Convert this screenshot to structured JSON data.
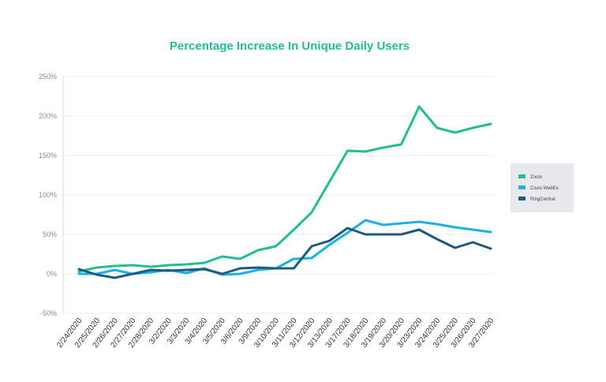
{
  "chart_data": {
    "type": "line",
    "title": "Percentage Increase In Unique Daily Users",
    "xlabel": "",
    "ylabel": "",
    "categories": [
      "2/24/2020",
      "2/25/2020",
      "2/26/2020",
      "2/27/2020",
      "2/28/2020",
      "3/2/2020",
      "3/3/2020",
      "3/4/2020",
      "3/5/2020",
      "3/6/2020",
      "3/9/2020",
      "3/10/2020",
      "3/11/2020",
      "3/12/2020",
      "3/13/2020",
      "3/17/2020",
      "3/18/2020",
      "3/19/2020",
      "3/20/2020",
      "3/23/2020",
      "3/24/2020",
      "3/25/2020",
      "3/26/2020",
      "3/27/2020"
    ],
    "y_ticks": [
      -50,
      0,
      50,
      100,
      150,
      200,
      250
    ],
    "y_tick_labels": [
      "-50%",
      "0%",
      "50%",
      "100%",
      "150%",
      "200%",
      "250%"
    ],
    "ylim": [
      -50,
      250
    ],
    "grid": true,
    "legend_position": "right",
    "title_color": "#1fbf8f",
    "series": [
      {
        "name": "Zoom",
        "color": "#1fbf8f",
        "values": [
          3,
          8,
          10,
          11,
          9,
          11,
          12,
          14,
          22,
          19,
          30,
          35,
          56,
          78,
          117,
          156,
          155,
          160,
          164,
          212,
          185,
          179,
          185,
          190
        ]
      },
      {
        "name": "Cisco WebEx",
        "color": "#1ab1ea",
        "values": [
          0,
          0,
          5,
          0,
          2,
          5,
          1,
          7,
          -1,
          0,
          5,
          7,
          19,
          20,
          37,
          52,
          68,
          62,
          64,
          66,
          63,
          59,
          56,
          53
        ]
      },
      {
        "name": "RingCentral",
        "color": "#1f5a7f",
        "values": [
          6,
          -1,
          -5,
          0,
          5,
          4,
          5,
          6,
          0,
          7,
          8,
          7,
          7,
          35,
          42,
          58,
          50,
          50,
          50,
          56,
          44,
          33,
          40,
          32
        ]
      }
    ]
  }
}
